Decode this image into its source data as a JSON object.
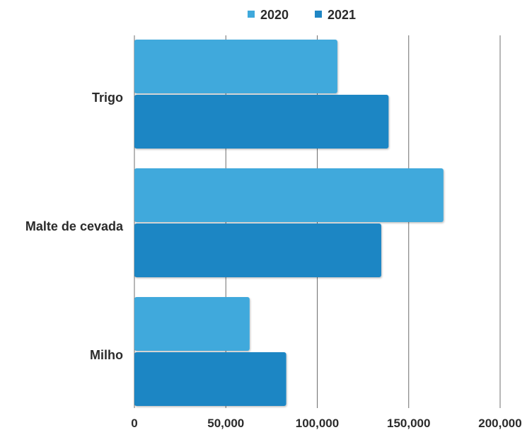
{
  "chart_data": {
    "type": "bar",
    "orientation": "horizontal",
    "categories": [
      "Trigo",
      "Malte de cevada",
      "Milho"
    ],
    "series": [
      {
        "name": "2020",
        "color": "#3fa9dc",
        "values": [
          111000,
          169000,
          63000
        ]
      },
      {
        "name": "2021",
        "color": "#1f86c4",
        "values": [
          139000,
          135000,
          83000
        ]
      }
    ],
    "xlim": [
      0,
      200000
    ],
    "xticks": [
      "0",
      "50,000",
      "100,000",
      "150,000",
      "200,000"
    ],
    "xtick_values": [
      0,
      50000,
      100000,
      150000,
      200000
    ],
    "grid": true,
    "legend_position": "top-center",
    "title": "",
    "xlabel": "",
    "ylabel": ""
  }
}
